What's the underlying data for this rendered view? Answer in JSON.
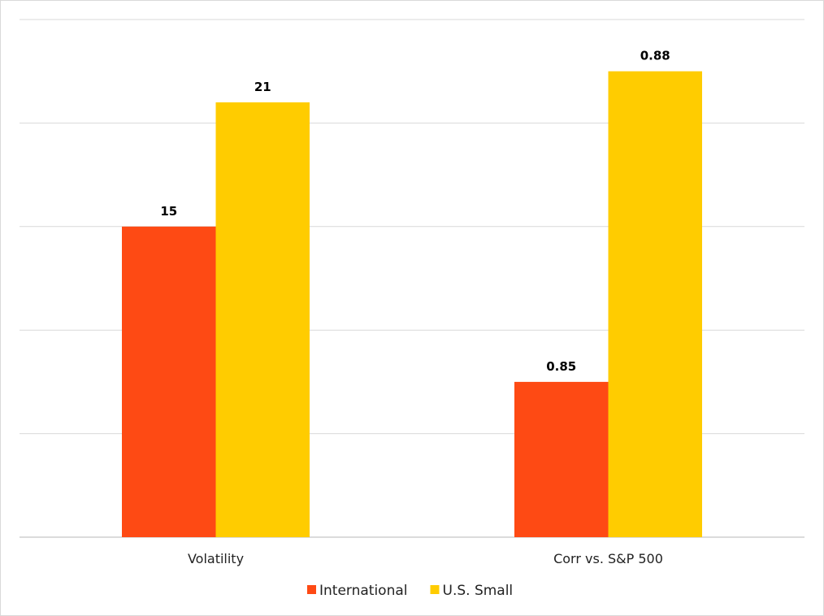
{
  "chart_data": {
    "type": "bar",
    "categories": [
      "Volatility",
      "Corr vs. S&P 500"
    ],
    "series": [
      {
        "name": "International",
        "color": "#fe4a14",
        "values": [
          15,
          0.85
        ]
      },
      {
        "name": "U.S. Small",
        "color": "#ffcc00",
        "values": [
          21,
          0.88
        ]
      }
    ],
    "data_labels": [
      [
        "15",
        "0.85"
      ],
      [
        "21",
        "0.88"
      ]
    ],
    "category_ylim": [
      [
        0,
        25
      ],
      [
        0.835,
        0.885
      ]
    ],
    "grid": true,
    "gridline_count": 5,
    "y_tick_labels_shown": false,
    "legend": "bottom-center",
    "title": "",
    "xlabel": "",
    "ylabel": ""
  }
}
